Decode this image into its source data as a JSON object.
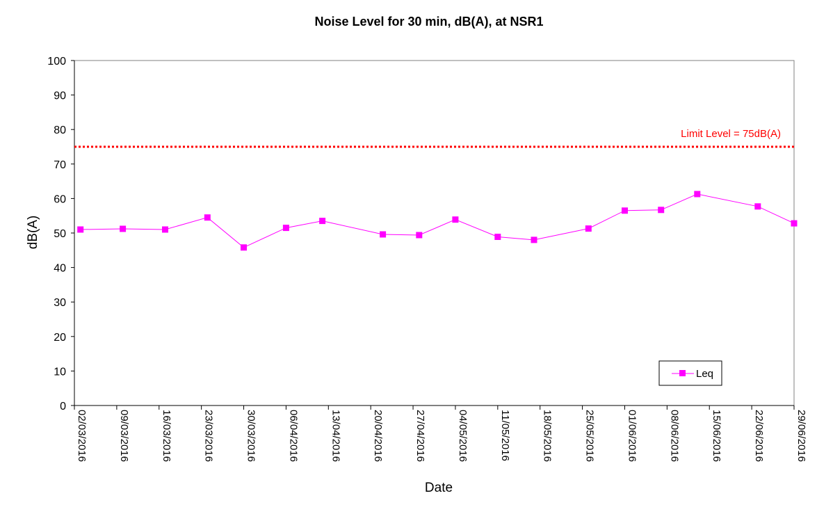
{
  "chart_data": {
    "type": "line",
    "title": "Noise Level for 30 min, dB(A), at NSR1",
    "xlabel": "Date",
    "ylabel": "dB(A)",
    "ylim": [
      0,
      100
    ],
    "yticks": [
      "0",
      "10",
      "20",
      "30",
      "40",
      "50",
      "60",
      "70",
      "80",
      "90",
      "100"
    ],
    "xlim": [
      "2016-03-02",
      "2016-06-29"
    ],
    "xticks": [
      "02/03/2016",
      "09/03/2016",
      "16/03/2016",
      "23/03/2016",
      "30/03/2016",
      "06/04/2016",
      "13/04/2016",
      "20/04/2016",
      "27/04/2016",
      "04/05/2016",
      "11/05/2016",
      "18/05/2016",
      "25/05/2016",
      "01/06/2016",
      "08/06/2016",
      "15/06/2016",
      "22/06/2016",
      "29/06/2016"
    ],
    "grid": false,
    "legend_position": "bottom-right",
    "series": [
      {
        "name": "Leq",
        "color": "#ff00ff",
        "marker": "square",
        "points": [
          {
            "x": "2016-03-03",
            "y": 51.0
          },
          {
            "x": "2016-03-10",
            "y": 51.2
          },
          {
            "x": "2016-03-17",
            "y": 51.0
          },
          {
            "x": "2016-03-24",
            "y": 54.5
          },
          {
            "x": "2016-03-30",
            "y": 45.8
          },
          {
            "x": "2016-04-06",
            "y": 51.5
          },
          {
            "x": "2016-04-12",
            "y": 53.5
          },
          {
            "x": "2016-04-22",
            "y": 49.6
          },
          {
            "x": "2016-04-28",
            "y": 49.4
          },
          {
            "x": "2016-05-04",
            "y": 53.9
          },
          {
            "x": "2016-05-11",
            "y": 48.9
          },
          {
            "x": "2016-05-17",
            "y": 48.0
          },
          {
            "x": "2016-05-26",
            "y": 51.3
          },
          {
            "x": "2016-06-01",
            "y": 56.5
          },
          {
            "x": "2016-06-07",
            "y": 56.7
          },
          {
            "x": "2016-06-13",
            "y": 61.3
          },
          {
            "x": "2016-06-23",
            "y": 57.7
          },
          {
            "x": "2016-06-29",
            "y": 52.8
          }
        ]
      }
    ],
    "limit_line": {
      "value": 75,
      "label": "Limit Level = 75dB(A)",
      "color": "#ff0000",
      "style": "dotted"
    },
    "colors": {
      "axis": "#000000",
      "plot_border": "#808080",
      "text": "#000000"
    }
  }
}
